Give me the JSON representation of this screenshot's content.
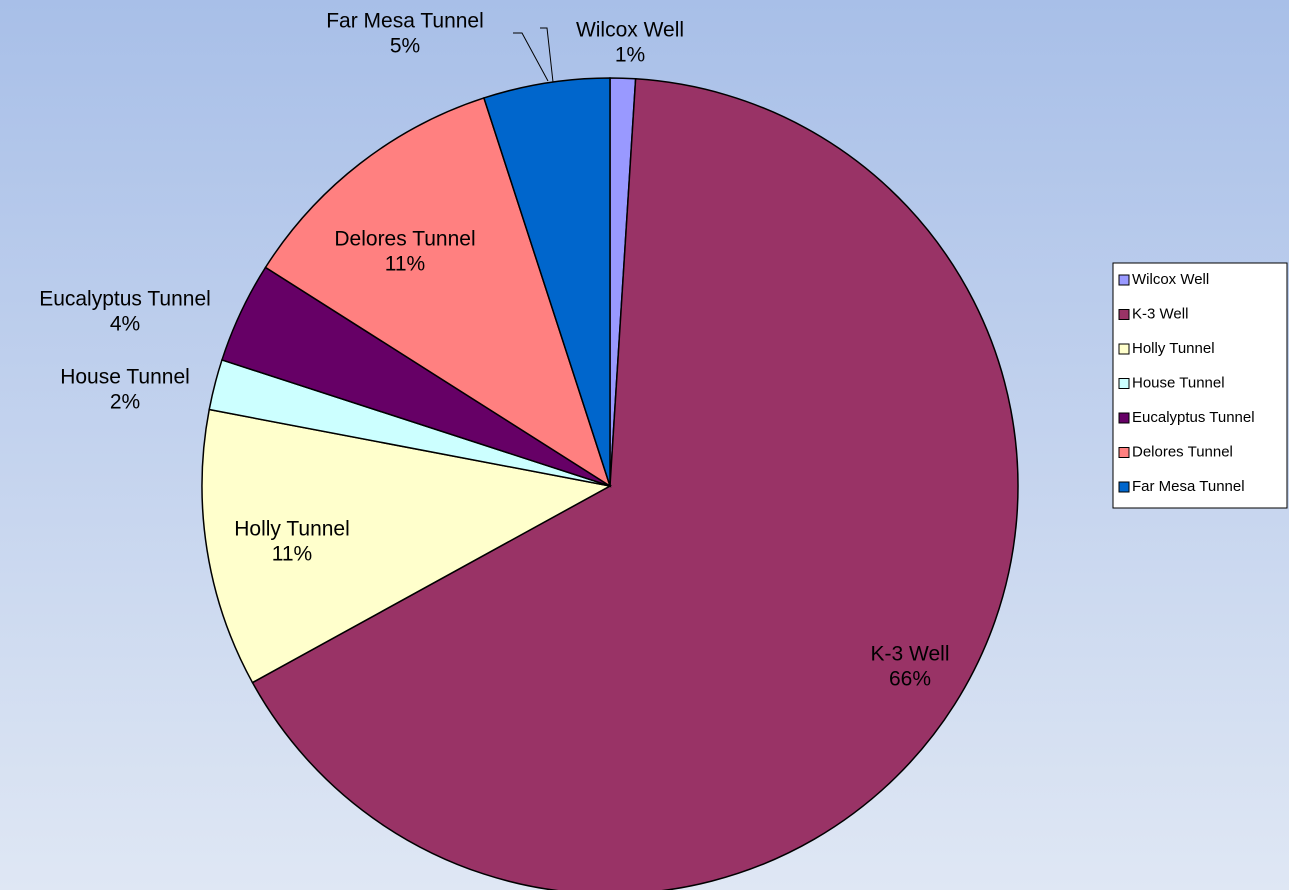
{
  "chart_data": {
    "type": "pie",
    "categories": [
      "Wilcox Well",
      "K-3 Well",
      "Holly Tunnel",
      "House Tunnel",
      "Eucalyptus Tunnel",
      "Delores Tunnel",
      "Far Mesa Tunnel"
    ],
    "values": [
      1,
      66,
      11,
      2,
      4,
      11,
      5
    ],
    "value_labels": [
      "1%",
      "66%",
      "11%",
      "2%",
      "4%",
      "11%",
      "5%"
    ],
    "colors": [
      "#9999ff",
      "#993366",
      "#ffffcc",
      "#ccffff",
      "#660066",
      "#ff8080",
      "#0066cc"
    ],
    "legend": "right"
  }
}
